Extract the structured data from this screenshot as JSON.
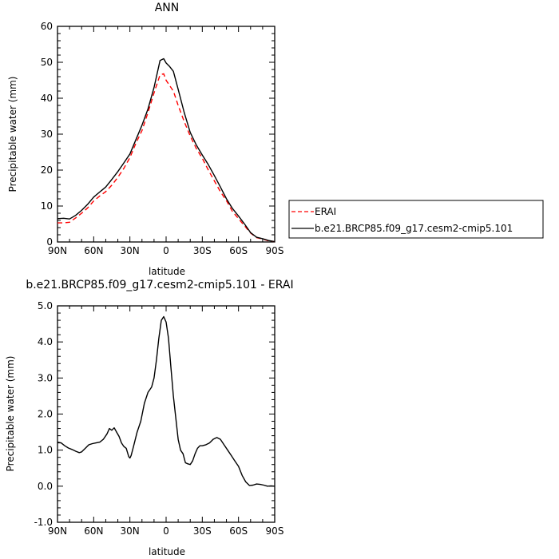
{
  "chart_data": [
    {
      "type": "line",
      "title": "ANN",
      "xlabel": "latitude",
      "ylabel": "Precipitable water (mm)",
      "xlim": [
        90,
        -90
      ],
      "ylim": [
        0,
        60
      ],
      "x_ticks": [
        90,
        60,
        30,
        0,
        -30,
        -60,
        -90
      ],
      "x_tick_labels": [
        "90N",
        "60N",
        "30N",
        "0",
        "30S",
        "60S",
        "90S"
      ],
      "y_ticks": [
        0,
        10,
        20,
        30,
        40,
        50,
        60
      ],
      "y_tick_labels": [
        "0",
        "10",
        "20",
        "30",
        "40",
        "50",
        "60"
      ],
      "legend_position": "right",
      "series": [
        {
          "name": "ERAI",
          "color": "#ff0000",
          "style": "dashed",
          "x": [
            90,
            85,
            80,
            75,
            70,
            65,
            60,
            55,
            50,
            45,
            40,
            35,
            30,
            25,
            20,
            15,
            10,
            5,
            2,
            0,
            -3,
            -6,
            -10,
            -15,
            -20,
            -25,
            -30,
            -35,
            -40,
            -45,
            -50,
            -55,
            -60,
            -65,
            -70,
            -75,
            -80,
            -85,
            -90
          ],
          "y": [
            5.3,
            5.3,
            5.5,
            6.7,
            8.0,
            9.5,
            11.4,
            12.8,
            14.0,
            15.8,
            18.0,
            20.5,
            23.5,
            27.5,
            31.0,
            36.0,
            41.5,
            46.5,
            46.8,
            45.0,
            43.5,
            42.0,
            38.0,
            33.5,
            29.5,
            26.0,
            23.3,
            20.0,
            17.0,
            14.0,
            11.5,
            8.5,
            6.5,
            4.5,
            2.5,
            1.2,
            0.8,
            0.3,
            0.1
          ]
        },
        {
          "name": "b.e21.BRCP85.f09_g17.cesm2-cmip5.101",
          "color": "#000000",
          "style": "solid",
          "x": [
            90,
            85,
            80,
            75,
            70,
            65,
            60,
            55,
            50,
            45,
            40,
            35,
            30,
            25,
            20,
            15,
            10,
            5,
            2,
            0,
            -3,
            -6,
            -10,
            -15,
            -20,
            -25,
            -30,
            -35,
            -40,
            -45,
            -50,
            -55,
            -60,
            -65,
            -70,
            -75,
            -80,
            -85,
            -90
          ],
          "y": [
            6.5,
            6.6,
            6.4,
            7.4,
            8.8,
            10.5,
            12.5,
            13.9,
            15.3,
            17.4,
            19.6,
            22.0,
            24.5,
            28.5,
            32.5,
            37.0,
            43.0,
            50.5,
            51.0,
            49.8,
            48.8,
            47.5,
            42.5,
            36.0,
            30.5,
            27.0,
            24.2,
            21.5,
            18.5,
            15.3,
            12.0,
            9.3,
            7.2,
            5.0,
            2.6,
            1.3,
            0.9,
            0.4,
            0.1
          ]
        }
      ]
    },
    {
      "type": "line",
      "title": "b.e21.BRCP85.f09_g17.cesm2-cmip5.101  -  ERAI",
      "xlabel": "latitude",
      "ylabel": "Precipitable water (mm)",
      "xlim": [
        90,
        -90
      ],
      "ylim": [
        -1.0,
        5.0
      ],
      "x_ticks": [
        90,
        60,
        30,
        0,
        -30,
        -60,
        -90
      ],
      "x_tick_labels": [
        "90N",
        "60N",
        "30N",
        "0",
        "30S",
        "60S",
        "90S"
      ],
      "y_ticks": [
        -1.0,
        0.0,
        1.0,
        2.0,
        3.0,
        4.0,
        5.0
      ],
      "y_tick_labels": [
        "-1.0",
        "0.0",
        "1.0",
        "2.0",
        "3.0",
        "4.0",
        "5.0"
      ],
      "series": [
        {
          "color": "#000000",
          "style": "solid",
          "x": [
            90,
            87,
            84,
            81,
            78,
            75,
            72,
            70,
            67,
            64,
            61,
            58,
            55,
            52,
            49,
            47,
            45,
            43,
            41,
            39,
            37,
            35,
            33,
            31,
            30,
            29,
            27,
            24,
            21,
            18,
            15,
            12,
            10,
            8,
            6,
            4,
            2,
            0,
            -2,
            -4,
            -6,
            -8,
            -10,
            -12,
            -14,
            -16,
            -18,
            -20,
            -22,
            -24,
            -26,
            -28,
            -30,
            -33,
            -36,
            -39,
            -42,
            -45,
            -48,
            -51,
            -54,
            -57,
            -60,
            -63,
            -66,
            -69,
            -72,
            -75,
            -78,
            -81,
            -84,
            -87,
            -90
          ],
          "y": [
            1.22,
            1.2,
            1.12,
            1.06,
            1.02,
            0.97,
            0.93,
            0.95,
            1.05,
            1.15,
            1.18,
            1.2,
            1.22,
            1.3,
            1.45,
            1.6,
            1.55,
            1.62,
            1.5,
            1.38,
            1.2,
            1.1,
            1.05,
            0.82,
            0.78,
            0.85,
            1.1,
            1.5,
            1.8,
            2.3,
            2.6,
            2.75,
            3.0,
            3.5,
            4.1,
            4.6,
            4.7,
            4.55,
            4.1,
            3.3,
            2.5,
            1.9,
            1.3,
            1.0,
            0.9,
            0.65,
            0.62,
            0.6,
            0.7,
            0.9,
            1.05,
            1.12,
            1.12,
            1.15,
            1.2,
            1.3,
            1.35,
            1.3,
            1.15,
            1.0,
            0.85,
            0.7,
            0.55,
            0.3,
            0.12,
            0.02,
            0.03,
            0.06,
            0.05,
            0.03,
            0.0,
            0.01,
            0.0
          ]
        }
      ]
    }
  ]
}
